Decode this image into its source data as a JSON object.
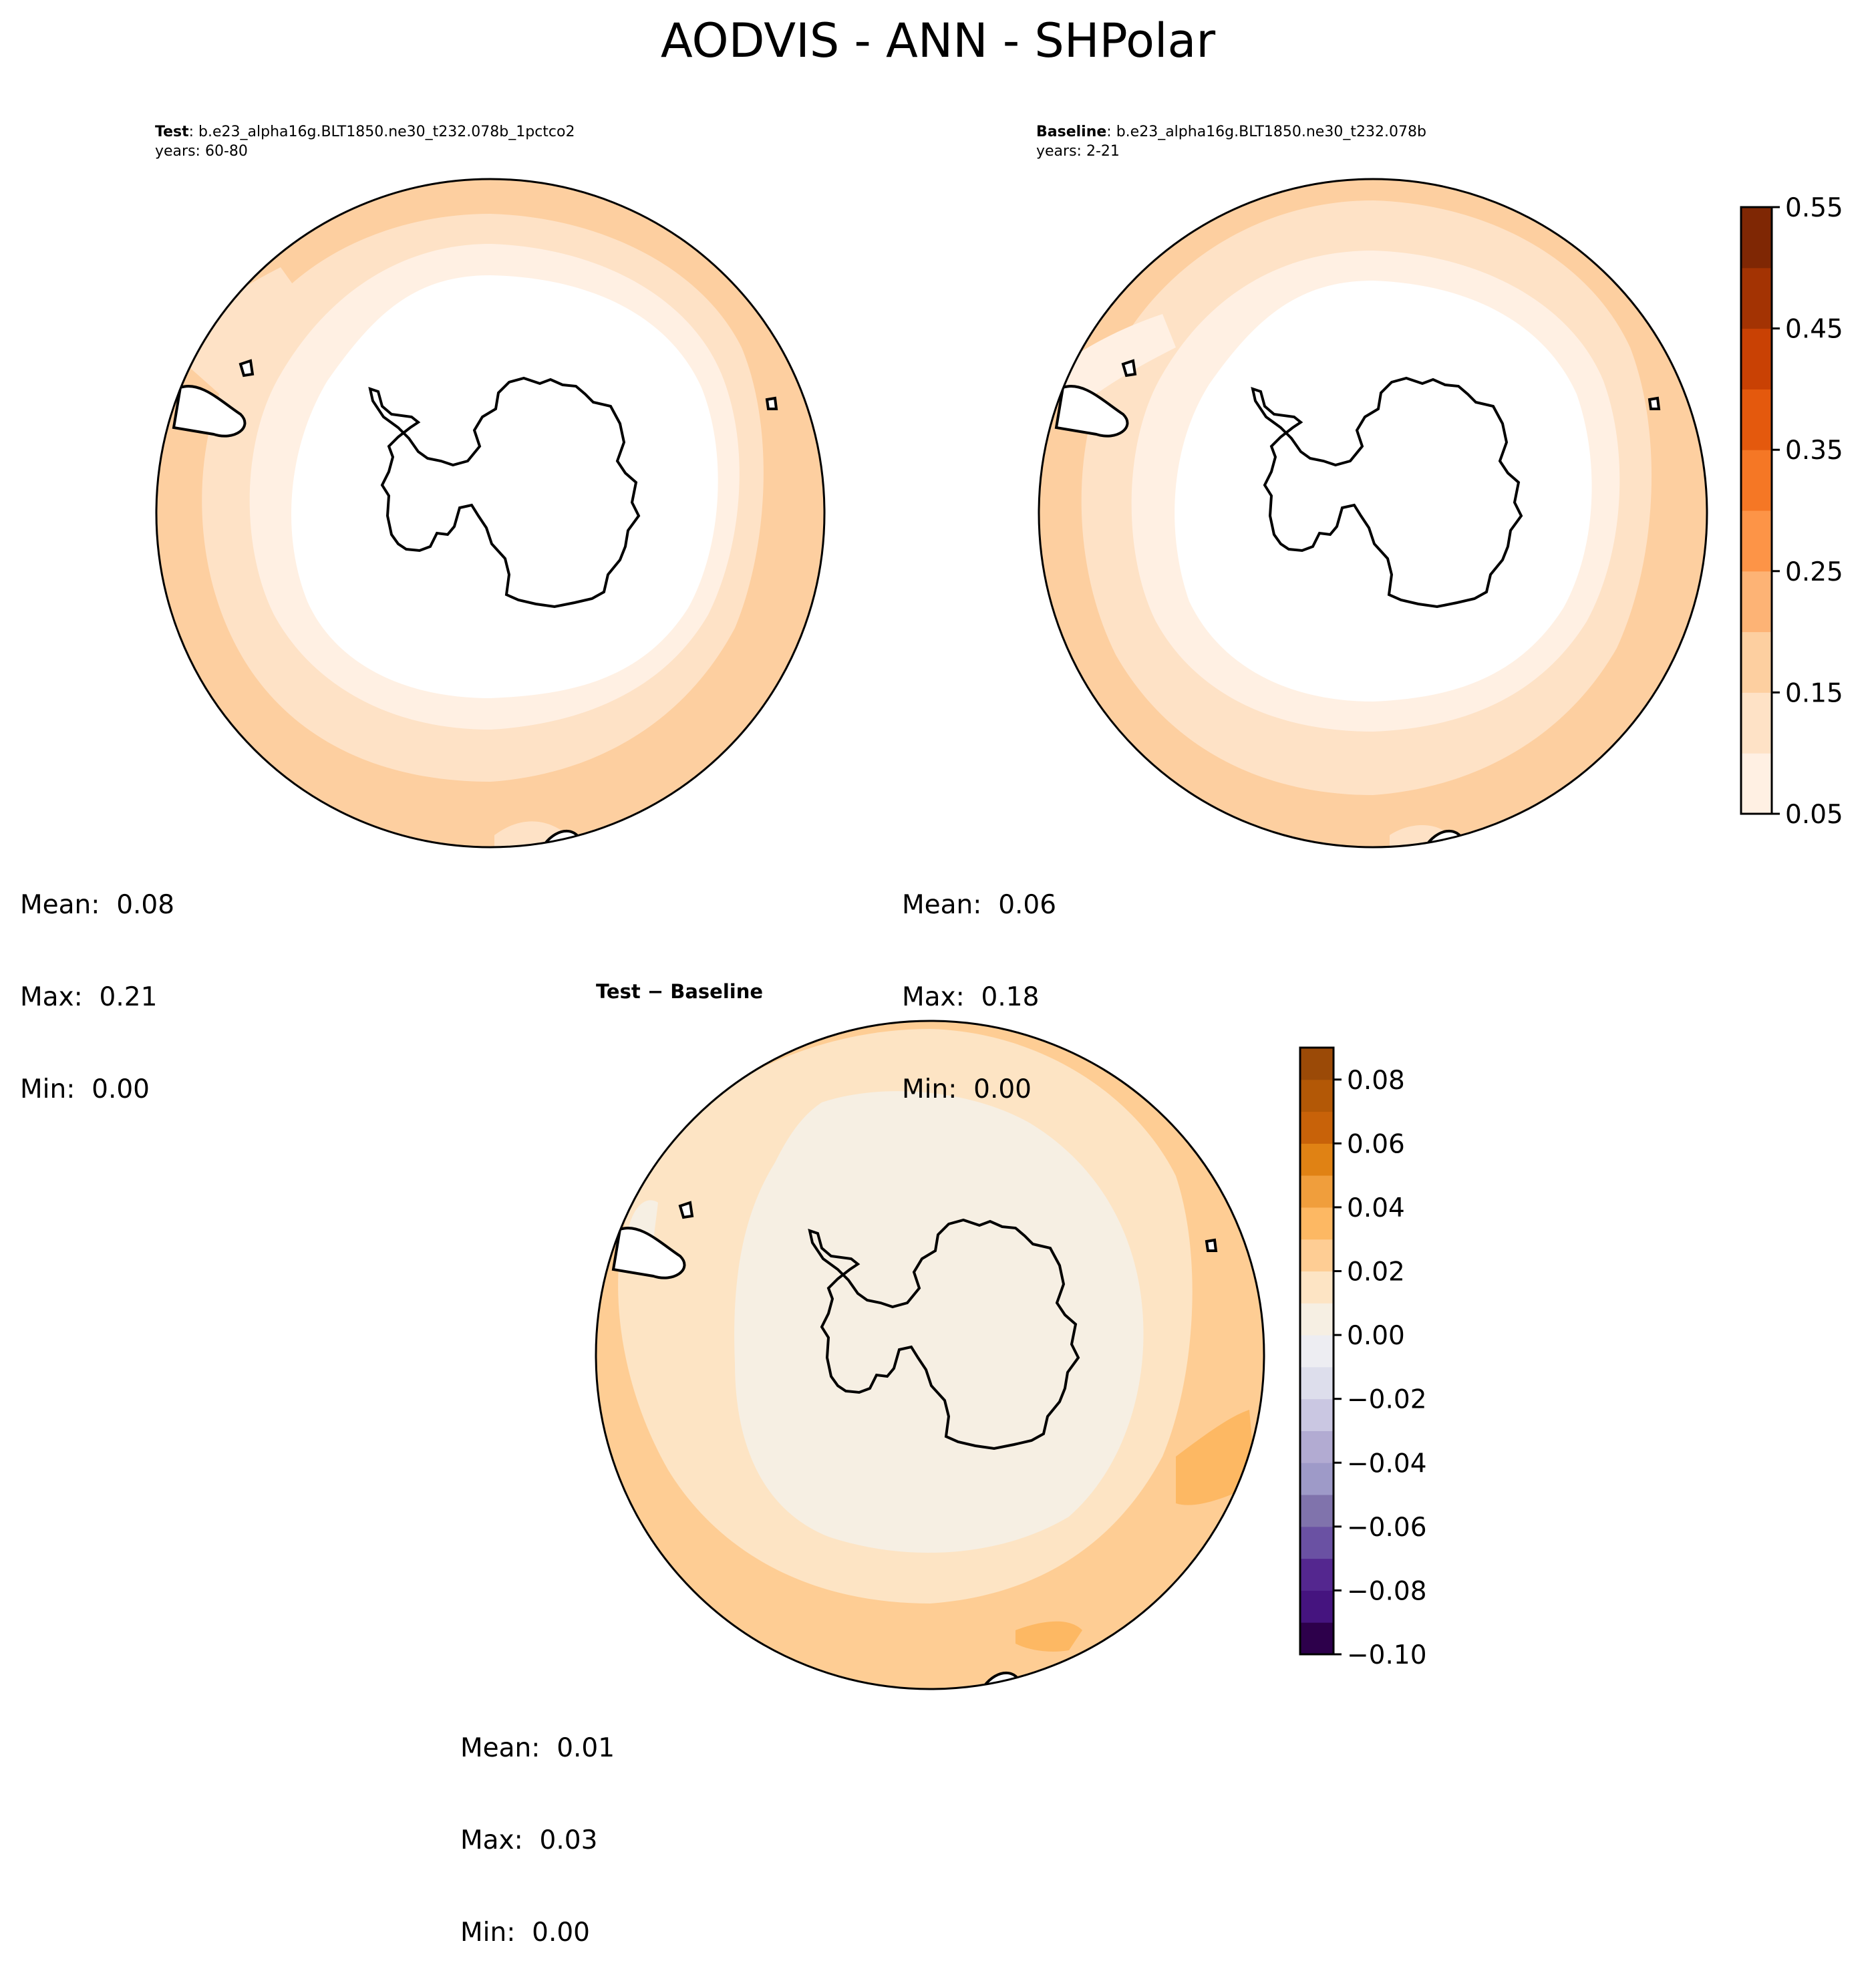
{
  "figure": {
    "title": "AODVIS - ANN - SHPolar"
  },
  "panels": {
    "test": {
      "label_bold": "Test",
      "label_rest": ": b.e23_alpha16g.BLT1850.ne30_t232.078b_1pctco2",
      "years": "years: 60-80",
      "stats": {
        "mean": "Mean:  0.08",
        "max": "Max:  0.21",
        "min": "Min:  0.00"
      }
    },
    "baseline": {
      "label_bold": "Baseline",
      "label_rest": ": b.e23_alpha16g.BLT1850.ne30_t232.078b",
      "years": "years: 2-21",
      "stats": {
        "mean": "Mean:  0.06",
        "max": "Max:  0.18",
        "min": "Min:  0.00"
      }
    },
    "diff": {
      "label": "Test − Baseline",
      "stats": {
        "mean": "Mean:  0.01",
        "max": "Max:  0.03",
        "min": "Min:  0.00"
      }
    }
  },
  "colorbars": {
    "main": {
      "ticks": [
        "0.05",
        "0.15",
        "0.25",
        "0.35",
        "0.45",
        "0.55"
      ],
      "levels": [
        0.05,
        0.1,
        0.15,
        0.2,
        0.25,
        0.3,
        0.35,
        0.4,
        0.45,
        0.5,
        0.55
      ],
      "colors": [
        "#fff0e3",
        "#fee2c6",
        "#fdcfa0",
        "#fdb375",
        "#fd9447",
        "#f57725",
        "#e4590d",
        "#c94104",
        "#a33303",
        "#7f2704"
      ]
    },
    "diff": {
      "ticks": [
        "0.08",
        "0.06",
        "0.04",
        "0.02",
        "0.00",
        "−0.02",
        "−0.04",
        "−0.06",
        "−0.08",
        "−0.10"
      ],
      "levels": [
        -0.1,
        -0.09,
        -0.08,
        -0.07,
        -0.06,
        -0.05,
        -0.04,
        -0.03,
        -0.02,
        -0.01,
        0.0,
        0.01,
        0.02,
        0.03,
        0.04,
        0.05,
        0.06,
        0.07,
        0.08,
        0.09
      ],
      "colors": [
        "#2d004b",
        "#45147f",
        "#54278f",
        "#6a51a3",
        "#8073ac",
        "#9e9ac8",
        "#b2abd2",
        "#cac7e2",
        "#dddeec",
        "#ededf2",
        "#f6efe3",
        "#fde4c4",
        "#fecd94",
        "#fdb863",
        "#f09e3c",
        "#e08214",
        "#c86209",
        "#b35806",
        "#9b4a07"
      ]
    }
  },
  "map_data": {
    "projection": "South Polar Stereographic",
    "region": "SHPolar",
    "variable": "AODVIS",
    "season": "ANN",
    "panel_fill_colors": {
      "test": [
        "#fff0e3",
        "#fee2c6",
        "#fdcfa0"
      ],
      "baseline": [
        "#fff0e3",
        "#fee2c6",
        "#fdcfa0"
      ],
      "diff": [
        "#f6efe3",
        "#fde4c4",
        "#fecd94",
        "#fdb863"
      ]
    }
  }
}
